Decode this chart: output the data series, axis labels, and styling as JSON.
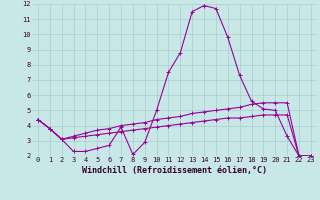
{
  "xlabel": "Windchill (Refroidissement éolien,°C)",
  "background_color": "#c8e8e8",
  "line_color": "#990099",
  "grid_color": "#aacccc",
  "line_main": [
    4.4,
    3.8,
    3.1,
    2.3,
    2.3,
    2.5,
    2.7,
    3.9,
    2.1,
    2.9,
    5.0,
    7.5,
    8.8,
    11.5,
    11.9,
    11.7,
    9.8,
    7.3,
    5.6,
    5.1,
    5.0,
    3.3,
    2.0,
    2.0
  ],
  "line_upper": [
    4.4,
    3.8,
    3.1,
    3.3,
    3.5,
    3.7,
    3.8,
    4.0,
    4.1,
    4.2,
    4.4,
    4.5,
    4.6,
    4.8,
    4.9,
    5.0,
    5.1,
    5.2,
    5.4,
    5.5,
    5.5,
    5.5,
    2.0,
    2.0
  ],
  "line_lower": [
    4.4,
    3.8,
    3.1,
    3.2,
    3.3,
    3.4,
    3.5,
    3.6,
    3.7,
    3.8,
    3.9,
    4.0,
    4.1,
    4.2,
    4.3,
    4.4,
    4.5,
    4.5,
    4.6,
    4.7,
    4.7,
    4.7,
    2.0,
    2.0
  ],
  "x_values": [
    0,
    1,
    2,
    3,
    4,
    5,
    6,
    7,
    8,
    9,
    10,
    11,
    12,
    13,
    14,
    15,
    16,
    17,
    18,
    19,
    20,
    21,
    22,
    23
  ],
  "ylim": [
    2,
    12
  ],
  "xlim": [
    -0.5,
    23.5
  ],
  "yticks": [
    2,
    3,
    4,
    5,
    6,
    7,
    8,
    9,
    10,
    11,
    12
  ],
  "xticks": [
    0,
    1,
    2,
    3,
    4,
    5,
    6,
    7,
    8,
    9,
    10,
    11,
    12,
    13,
    14,
    15,
    16,
    17,
    18,
    19,
    20,
    21,
    22,
    23
  ],
  "tick_fontsize": 5,
  "xlabel_fontsize": 6
}
